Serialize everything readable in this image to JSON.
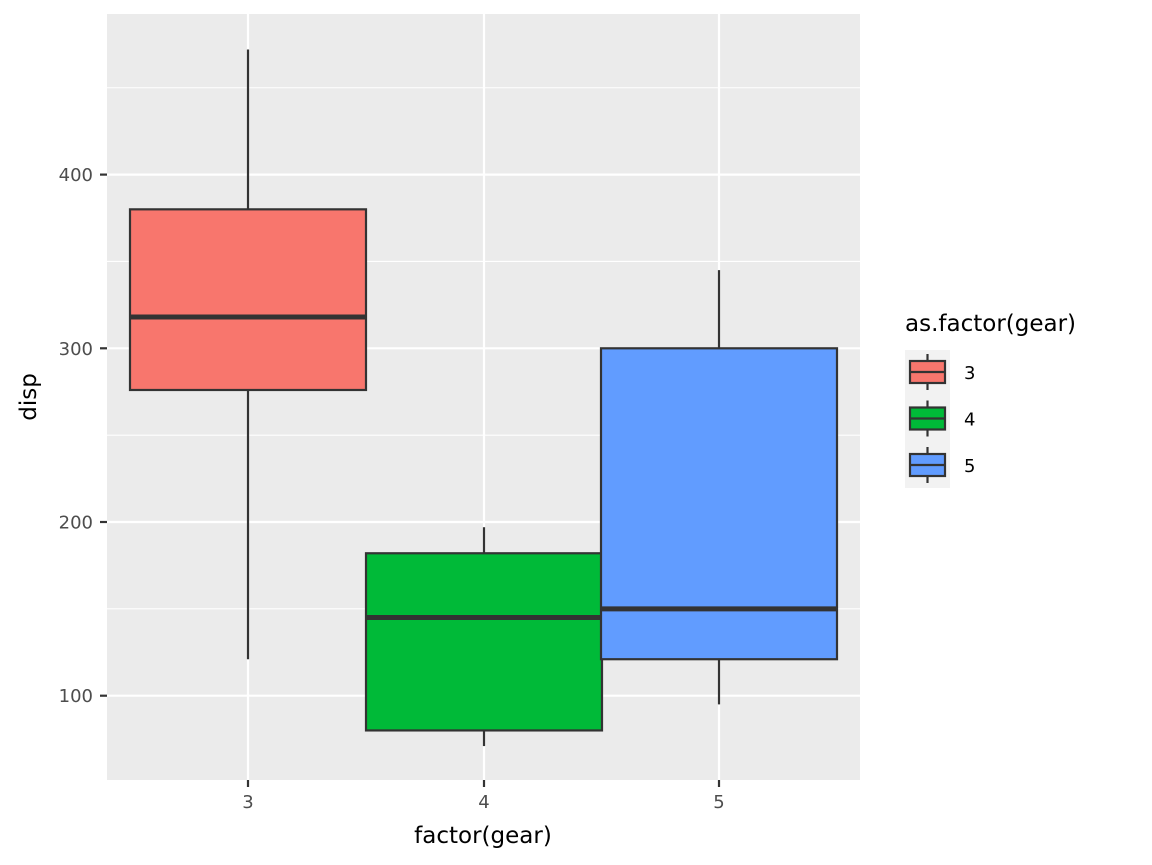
{
  "chart_data": {
    "type": "boxplot",
    "xlabel": "factor(gear)",
    "ylabel": "disp",
    "categories": [
      "3",
      "4",
      "5"
    ],
    "ylim": [
      50,
      490
    ],
    "yticks": [
      100,
      200,
      300,
      400
    ],
    "grid": true,
    "legend": {
      "title": "as.factor(gear)",
      "position": "right",
      "entries": [
        "3",
        "4",
        "5"
      ]
    },
    "colors": {
      "3": "#F8766D",
      "4": "#00BA38",
      "5": "#619CFF",
      "panel": "#EBEBEB",
      "gridline": "#FFFFFF",
      "outline": "#333333"
    },
    "boxes": [
      {
        "group": "3",
        "whisker_low": 121,
        "q1": 276,
        "median": 318,
        "q3": 380,
        "whisker_high": 472
      },
      {
        "group": "4",
        "whisker_low": 71,
        "q1": 80,
        "median": 145,
        "q3": 182,
        "whisker_high": 197
      },
      {
        "group": "5",
        "whisker_low": 95,
        "q1": 121,
        "median": 150,
        "q3": 300,
        "whisker_high": 345
      }
    ]
  }
}
